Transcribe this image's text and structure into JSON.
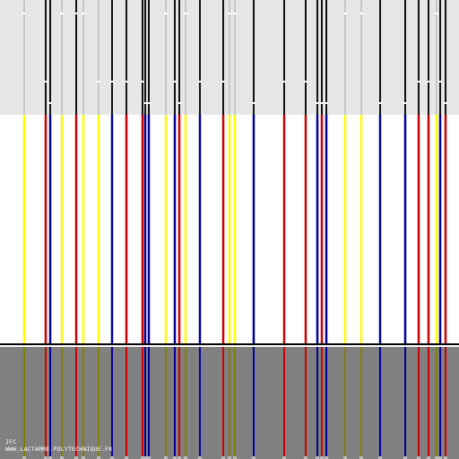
{
  "colors": {
    "top_band": "#e6e6e6",
    "white_band": "#ffffff",
    "divider": "#000000",
    "bottom_band": "#808080",
    "credit_text": "#ffffff",
    "marker": "#ffffff"
  },
  "palette": {
    "yellow": {
      "top": "#ffff00",
      "bottom": "#808000"
    },
    "red": {
      "top": "#cc0000",
      "bottom": "#cc0000"
    },
    "blue": {
      "top": "#000099",
      "bottom": "#000099"
    }
  },
  "stripes": [
    {
      "color": "yellow"
    },
    {
      "color": "red"
    },
    {
      "color": "blue"
    },
    {
      "color": "yellow"
    },
    {
      "color": "red"
    },
    {
      "color": "yellow"
    },
    {
      "color": "yellow"
    },
    {
      "color": "blue"
    },
    {
      "color": "red"
    },
    {
      "color": "red"
    },
    {
      "color": "blue"
    },
    {
      "color": "blue"
    },
    {
      "color": "yellow"
    },
    {
      "color": "blue"
    },
    {
      "color": "red"
    },
    {
      "color": "yellow"
    },
    {
      "color": "blue"
    },
    {
      "color": "red"
    },
    {
      "color": "yellow"
    },
    {
      "color": "yellow"
    },
    {
      "color": "blue"
    },
    {
      "color": "red"
    },
    {
      "color": "red"
    },
    {
      "color": "blue"
    },
    {
      "color": "red"
    },
    {
      "color": "blue"
    },
    {
      "color": "yellow"
    },
    {
      "color": "yellow"
    },
    {
      "color": "blue"
    },
    {
      "color": "blue"
    },
    {
      "color": "red"
    },
    {
      "color": "red"
    },
    {
      "color": "yellow"
    },
    {
      "color": "blue"
    },
    {
      "color": "red"
    }
  ],
  "credit": {
    "line1": "JFC",
    "line2": "WWW.LACTAMME.POLYTECHNIQUE.FR"
  }
}
